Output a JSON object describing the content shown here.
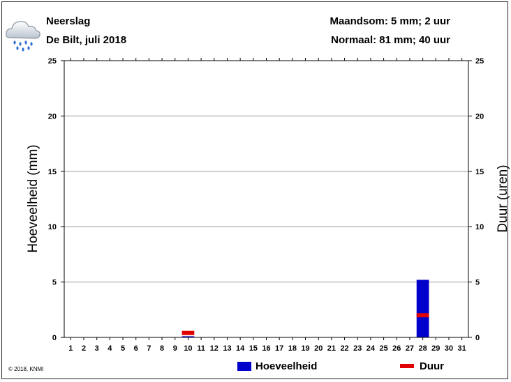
{
  "header": {
    "title": "Neerslag",
    "subtitle": "De Bilt, juli 2018",
    "monthly_sum": "Maandsom: 5 mm; 2 uur",
    "normal": "Normaal: 81 mm; 40 uur"
  },
  "copyright": "© 2018, KNMI",
  "icon": "rain-cloud-icon",
  "colors": {
    "amount": "#0000cc",
    "duration": "#e00000",
    "grid": "#9a9a9a"
  },
  "chart_data": {
    "type": "bar",
    "xlabel": "",
    "ylabel": "Hoeveelheid (mm)",
    "y2label": "Duur (uren)",
    "ylim": [
      0,
      25
    ],
    "y2lim": [
      0,
      25
    ],
    "yticks": [
      0,
      5,
      10,
      15,
      20,
      25
    ],
    "grid": true,
    "categories": [
      1,
      2,
      3,
      4,
      5,
      6,
      7,
      8,
      9,
      10,
      11,
      12,
      13,
      14,
      15,
      16,
      17,
      18,
      19,
      20,
      21,
      22,
      23,
      24,
      25,
      26,
      27,
      28,
      29,
      30,
      31
    ],
    "series": [
      {
        "name": "Hoeveelheid",
        "type": "bar",
        "values": [
          0,
          0,
          0,
          0,
          0,
          0,
          0,
          0,
          0,
          0.1,
          0,
          0,
          0,
          0,
          0,
          0,
          0,
          0,
          0,
          0,
          0,
          0,
          0,
          0,
          0,
          0,
          0,
          5.2,
          0,
          0,
          0
        ]
      },
      {
        "name": "Duur",
        "type": "marker",
        "values": [
          0,
          0,
          0,
          0,
          0,
          0,
          0,
          0,
          0,
          0.4,
          0,
          0,
          0,
          0,
          0,
          0,
          0,
          0,
          0,
          0,
          0,
          0,
          0,
          0,
          0,
          0,
          0,
          2.0,
          0,
          0,
          0
        ]
      }
    ],
    "legend": "bottom"
  }
}
